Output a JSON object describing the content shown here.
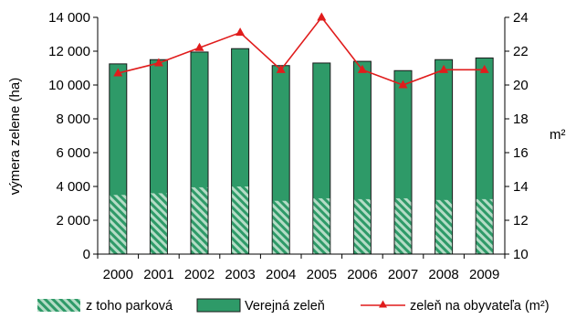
{
  "chart_data": {
    "type": "bar",
    "categories": [
      "2000",
      "2001",
      "2002",
      "2003",
      "2004",
      "2005",
      "2006",
      "2007",
      "2008",
      "2009"
    ],
    "series": [
      {
        "name": "z toho parková",
        "kind": "bar",
        "axis": "left",
        "values": [
          3500,
          3600,
          3950,
          4000,
          3150,
          3300,
          3250,
          3300,
          3200,
          3250
        ]
      },
      {
        "name": "Verejná zeleň",
        "kind": "bar",
        "axis": "left",
        "values": [
          11250,
          11500,
          11950,
          12150,
          11150,
          11300,
          11400,
          10850,
          11500,
          11600
        ]
      },
      {
        "name": "zeleň na obyvateľa (m²)",
        "kind": "line",
        "axis": "right",
        "values": [
          20.7,
          21.3,
          22.2,
          23.1,
          20.9,
          24.0,
          20.9,
          20.0,
          20.9,
          20.9
        ]
      }
    ],
    "ylabel": "výmera zelene (ha)",
    "y2label": "m²",
    "ylim": [
      0,
      14000
    ],
    "y2lim": [
      10,
      24
    ],
    "yticks": [
      "0",
      "2 000",
      "4 000",
      "6 000",
      "8 000",
      "10 000",
      "12 000",
      "14 000"
    ],
    "y2ticks": [
      "10",
      "12",
      "14",
      "16",
      "18",
      "20",
      "22",
      "24"
    ],
    "grid": false,
    "legend": "bottom",
    "colors": {
      "bar": "#2e9a68",
      "bar_edge": "#1a1a1a",
      "hatch_light": "#b4dcc6",
      "hatch_dark": "#2e9a68",
      "line": "#e01c1c"
    }
  }
}
